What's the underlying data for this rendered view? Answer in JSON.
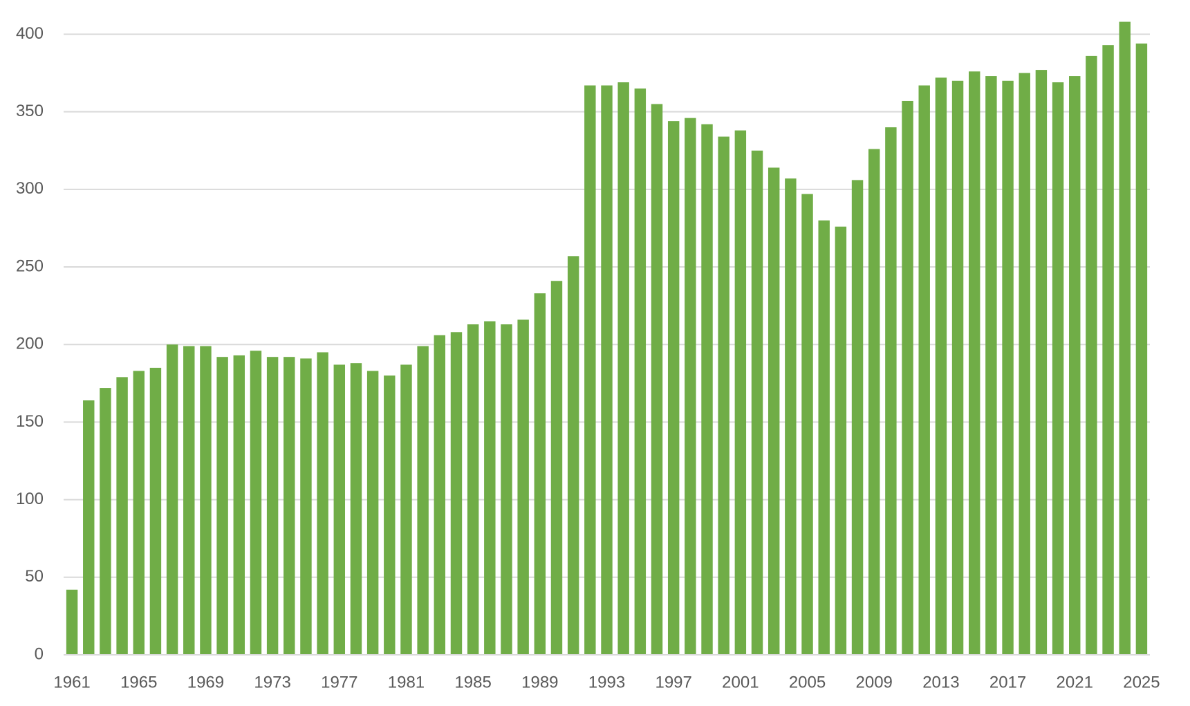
{
  "chart_data": {
    "type": "bar",
    "categories": [
      "1961",
      null,
      null,
      null,
      "1965",
      null,
      null,
      null,
      "1969",
      null,
      null,
      null,
      "1973",
      null,
      null,
      null,
      "1977",
      null,
      null,
      null,
      "1981",
      null,
      null,
      null,
      "1985",
      null,
      null,
      null,
      "1989",
      null,
      null,
      null,
      "1993",
      null,
      null,
      null,
      "1997",
      null,
      null,
      null,
      "2001",
      null,
      null,
      null,
      "2005",
      null,
      null,
      null,
      "2009",
      null,
      null,
      null,
      "2013",
      null,
      null,
      null,
      "2017",
      null,
      null,
      null,
      "2021",
      null,
      null,
      null,
      "2025"
    ],
    "values": [
      42,
      164,
      172,
      179,
      183,
      185,
      200,
      199,
      199,
      192,
      193,
      196,
      192,
      192,
      191,
      195,
      187,
      188,
      183,
      180,
      187,
      199,
      206,
      208,
      213,
      215,
      213,
      216,
      233,
      241,
      257,
      367,
      367,
      369,
      365,
      355,
      344,
      346,
      342,
      334,
      338,
      325,
      314,
      307,
      297,
      280,
      276,
      306,
      326,
      340,
      357,
      367,
      372,
      370,
      376,
      373,
      370,
      375,
      377,
      369,
      373,
      386,
      393,
      408,
      394
    ],
    "color": "#70ad47",
    "ylim": [
      0,
      420
    ],
    "yticks": [
      0,
      50,
      100,
      150,
      200,
      250,
      300,
      350,
      400
    ],
    "grid": true
  }
}
